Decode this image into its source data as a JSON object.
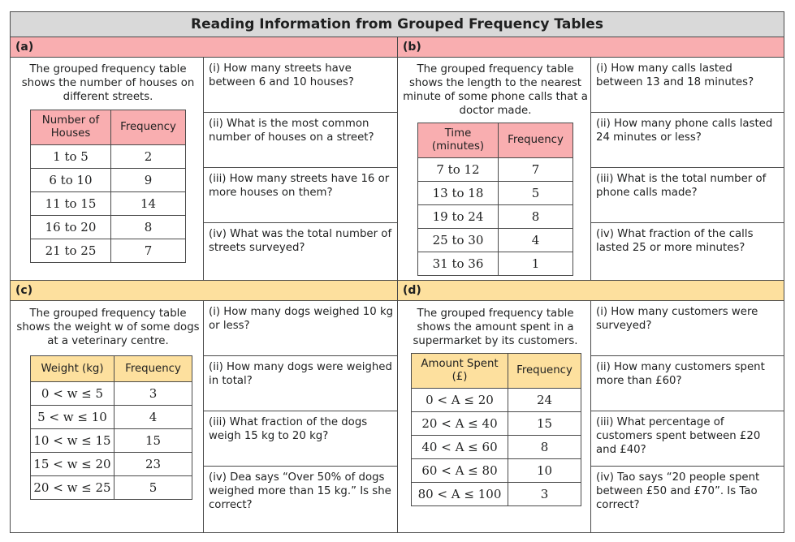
{
  "title": "Reading Information from Grouped Frequency Tables",
  "sections": {
    "a": {
      "label": "(a)",
      "intro": "The grouped frequency table shows the number of houses on different streets.",
      "table": {
        "headers": [
          "Number of Houses",
          "Frequency"
        ],
        "rows": [
          [
            "1 to 5",
            "2"
          ],
          [
            "6 to 10",
            "9"
          ],
          [
            "11 to 15",
            "14"
          ],
          [
            "16 to 20",
            "8"
          ],
          [
            "21 to 25",
            "7"
          ]
        ]
      },
      "questions": [
        "(i) How many streets have between 6 and 10 houses?",
        "(ii) What is the most common number of houses on a street?",
        "(iii) How many streets have 16 or more houses on them?",
        "(iv) What was the total number of streets surveyed?"
      ]
    },
    "b": {
      "label": "(b)",
      "intro": "The grouped frequency table shows the length to the nearest minute of some phone calls that a doctor made.",
      "table": {
        "headers": [
          "Time (minutes)",
          "Frequency"
        ],
        "rows": [
          [
            "7 to 12",
            "7"
          ],
          [
            "13 to 18",
            "5"
          ],
          [
            "19 to 24",
            "8"
          ],
          [
            "25 to 30",
            "4"
          ],
          [
            "31 to 36",
            "1"
          ]
        ]
      },
      "questions": [
        "(i) How many calls lasted between 13 and 18 minutes?",
        "(ii) How many phone calls lasted 24 minutes or less?",
        "(iii) What is the total number of phone calls made?",
        "(iv) What fraction of the calls lasted 25 or more minutes?"
      ]
    },
    "c": {
      "label": "(c)",
      "intro": "The grouped frequency table shows the weight w of some dogs at a veterinary centre.",
      "table": {
        "headers": [
          "Weight (kg)",
          "Frequency"
        ],
        "rows": [
          [
            "0 < w ≤ 5",
            "3"
          ],
          [
            "5 < w ≤ 10",
            "4"
          ],
          [
            "10 < w ≤ 15",
            "15"
          ],
          [
            "15 < w ≤ 20",
            "23"
          ],
          [
            "20 < w ≤ 25",
            "5"
          ]
        ]
      },
      "questions": [
        "(i) How many dogs weighed 10 kg or less?",
        "(ii) How many dogs were weighed in total?",
        "(iii) What fraction of the dogs weigh 15 kg to 20 kg?",
        "(iv) Dea says “Over 50% of dogs weighed more than 15 kg.” Is she correct?"
      ]
    },
    "d": {
      "label": "(d)",
      "intro": "The grouped frequency table shows the amount spent in a supermarket by its customers.",
      "table": {
        "headers": [
          "Amount Spent (£)",
          "Frequency"
        ],
        "rows": [
          [
            "0 < A ≤ 20",
            "24"
          ],
          [
            "20 < A ≤ 40",
            "15"
          ],
          [
            "40 < A ≤ 60",
            "8"
          ],
          [
            "60 < A ≤ 80",
            "10"
          ],
          [
            "80 < A ≤ 100",
            "3"
          ]
        ]
      },
      "questions": [
        "(i) How many customers were surveyed?",
        "(ii) How many customers spent more than £60?",
        "(iii) What percentage of customers spent between £20 and £40?",
        "(iv) Tao says “20 people spent between £50 and £70”. Is Tao correct?"
      ]
    }
  },
  "colors": {
    "header_top": "#f9aeb0",
    "header_bottom": "#fde09e",
    "table_header_a": "#f9aeb0",
    "table_header_c": "#fde09e",
    "title_bg": "#d9d9d9"
  }
}
